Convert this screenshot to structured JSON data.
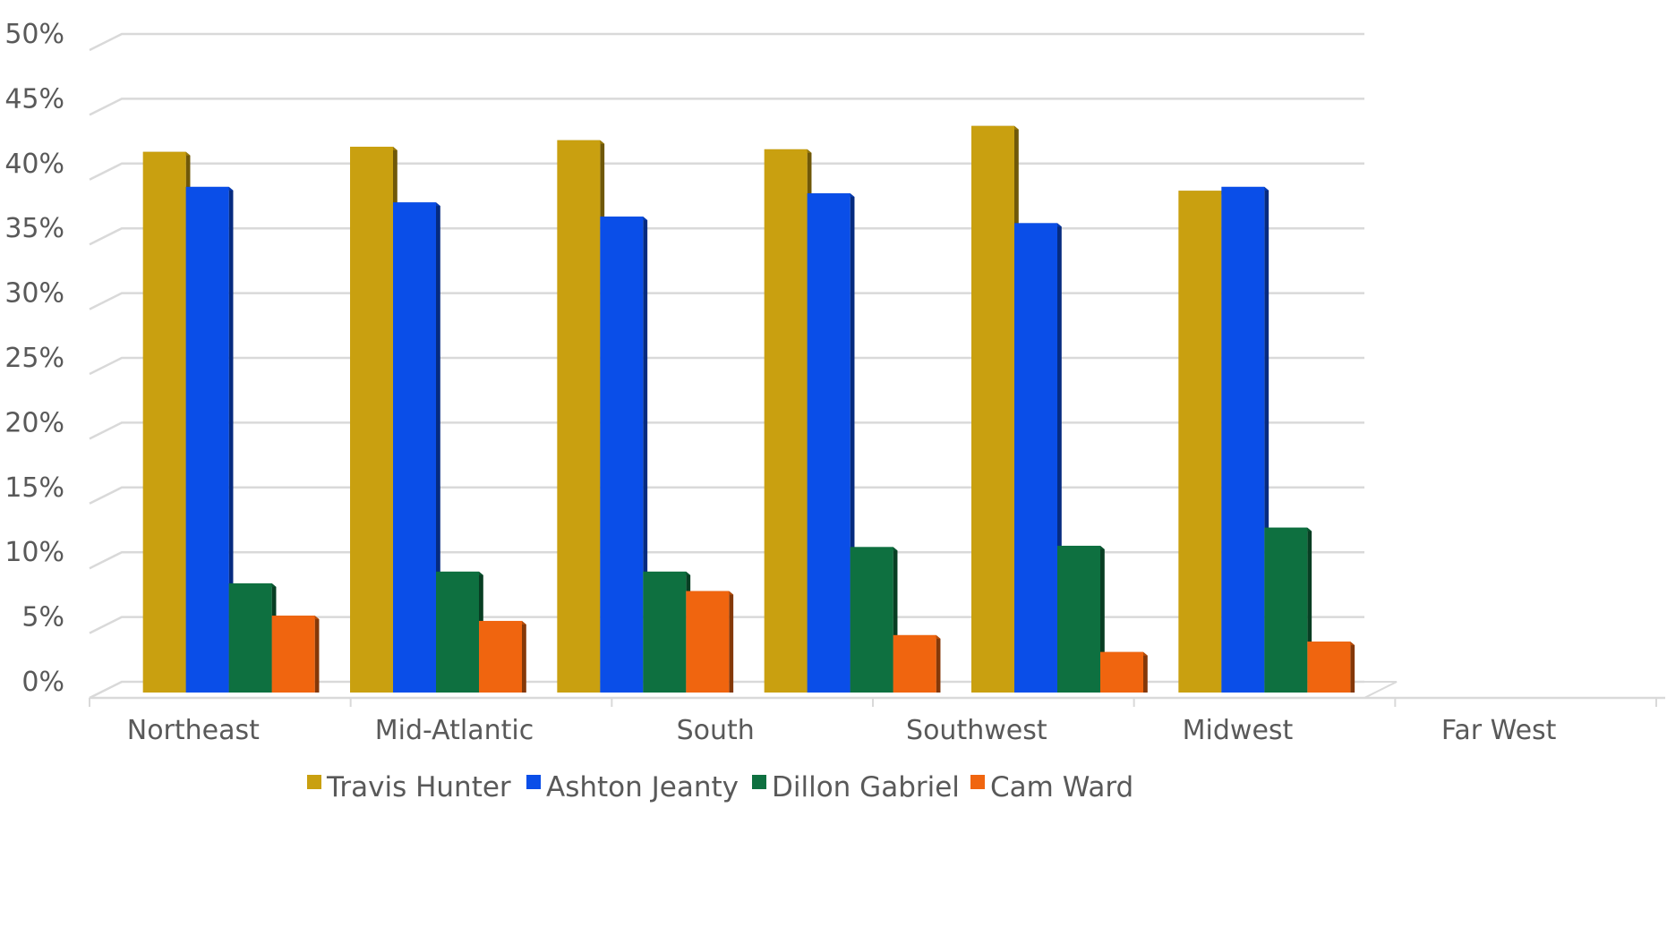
{
  "chart_data": {
    "type": "bar",
    "style": "3d-clustered-column",
    "categories": [
      "Northeast",
      "Mid-Atlantic",
      "South",
      "Southwest",
      "Midwest",
      "Far West"
    ],
    "series": [
      {
        "name": "Travis Hunter",
        "color": "#C9A010",
        "values": [
          40.9,
          41.3,
          41.8,
          41.1,
          42.9,
          37.9
        ]
      },
      {
        "name": "Ashton Jeanty",
        "color": "#0A4EE8",
        "values": [
          38.2,
          37.0,
          35.9,
          37.7,
          35.4,
          38.2
        ]
      },
      {
        "name": "Dillon Gabriel",
        "color": "#0E7040",
        "values": [
          7.6,
          8.5,
          8.5,
          10.4,
          10.5,
          11.9
        ]
      },
      {
        "name": "Cam Ward",
        "color": "#F0650F",
        "values": [
          5.1,
          4.7,
          7.0,
          3.6,
          2.3,
          3.1
        ]
      }
    ],
    "yticks": [
      "0%",
      "5%",
      "10%",
      "15%",
      "20%",
      "25%",
      "30%",
      "35%",
      "40%",
      "45%",
      "50%"
    ],
    "ylim": [
      0,
      50
    ],
    "grid": true,
    "legend": "bottom"
  }
}
